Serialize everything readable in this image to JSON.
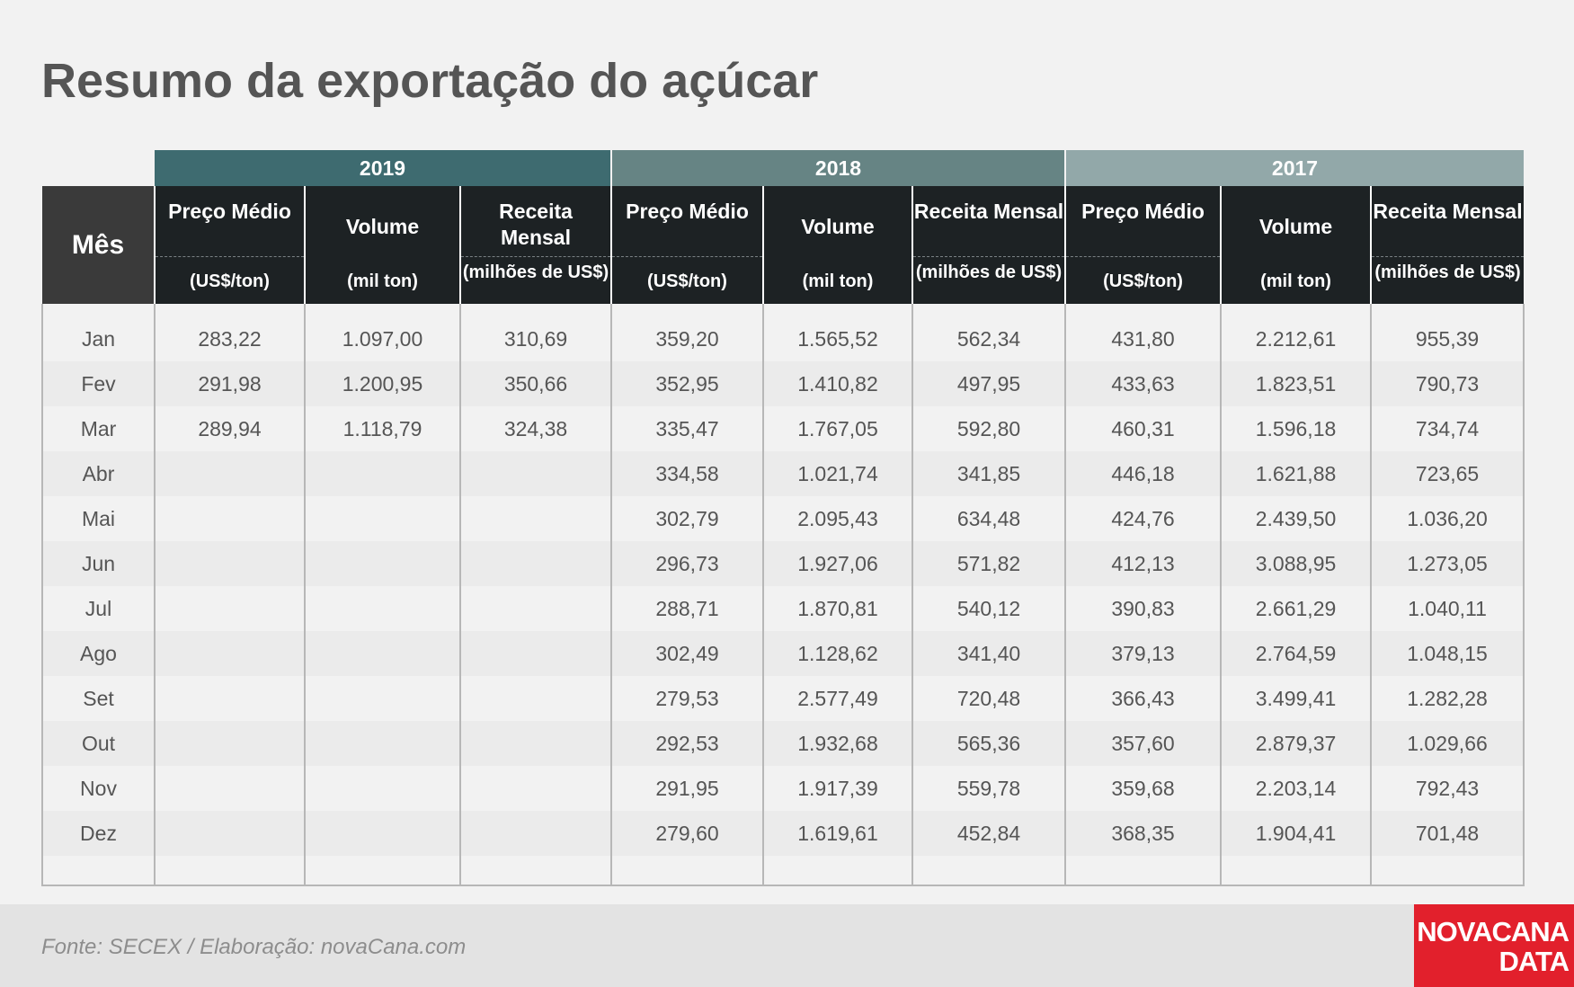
{
  "title": "Resumo da exportação do açúcar",
  "chart_data": {
    "type": "table",
    "title": "Resumo da exportação do açúcar",
    "row_header": "Mês",
    "years": [
      "2019",
      "2018",
      "2017"
    ],
    "columns": [
      {
        "name": "Preço Médio",
        "unit": "(US$/ton)"
      },
      {
        "name": "Volume",
        "unit": "(mil ton)"
      },
      {
        "name": "Receita Mensal",
        "unit": "(milhões de US$)"
      }
    ],
    "rows": [
      {
        "month": "Jan",
        "y2019": [
          "283,22",
          "1.097,00",
          "310,69"
        ],
        "y2018": [
          "359,20",
          "1.565,52",
          "562,34"
        ],
        "y2017": [
          "431,80",
          "2.212,61",
          "955,39"
        ]
      },
      {
        "month": "Fev",
        "y2019": [
          "291,98",
          "1.200,95",
          "350,66"
        ],
        "y2018": [
          "352,95",
          "1.410,82",
          "497,95"
        ],
        "y2017": [
          "433,63",
          "1.823,51",
          "790,73"
        ]
      },
      {
        "month": "Mar",
        "y2019": [
          "289,94",
          "1.118,79",
          "324,38"
        ],
        "y2018": [
          "335,47",
          "1.767,05",
          "592,80"
        ],
        "y2017": [
          "460,31",
          "1.596,18",
          "734,74"
        ]
      },
      {
        "month": "Abr",
        "y2019": [
          "",
          "",
          ""
        ],
        "y2018": [
          "334,58",
          "1.021,74",
          "341,85"
        ],
        "y2017": [
          "446,18",
          "1.621,88",
          "723,65"
        ]
      },
      {
        "month": "Mai",
        "y2019": [
          "",
          "",
          ""
        ],
        "y2018": [
          "302,79",
          "2.095,43",
          "634,48"
        ],
        "y2017": [
          "424,76",
          "2.439,50",
          "1.036,20"
        ]
      },
      {
        "month": "Jun",
        "y2019": [
          "",
          "",
          ""
        ],
        "y2018": [
          "296,73",
          "1.927,06",
          "571,82"
        ],
        "y2017": [
          "412,13",
          "3.088,95",
          "1.273,05"
        ]
      },
      {
        "month": "Jul",
        "y2019": [
          "",
          "",
          ""
        ],
        "y2018": [
          "288,71",
          "1.870,81",
          "540,12"
        ],
        "y2017": [
          "390,83",
          "2.661,29",
          "1.040,11"
        ]
      },
      {
        "month": "Ago",
        "y2019": [
          "",
          "",
          ""
        ],
        "y2018": [
          "302,49",
          "1.128,62",
          "341,40"
        ],
        "y2017": [
          "379,13",
          "2.764,59",
          "1.048,15"
        ]
      },
      {
        "month": "Set",
        "y2019": [
          "",
          "",
          ""
        ],
        "y2018": [
          "279,53",
          "2.577,49",
          "720,48"
        ],
        "y2017": [
          "366,43",
          "3.499,41",
          "1.282,28"
        ]
      },
      {
        "month": "Out",
        "y2019": [
          "",
          "",
          ""
        ],
        "y2018": [
          "292,53",
          "1.932,68",
          "565,36"
        ],
        "y2017": [
          "357,60",
          "2.879,37",
          "1.029,66"
        ]
      },
      {
        "month": "Nov",
        "y2019": [
          "",
          "",
          ""
        ],
        "y2018": [
          "291,95",
          "1.917,39",
          "559,78"
        ],
        "y2017": [
          "359,68",
          "2.203,14",
          "792,43"
        ]
      },
      {
        "month": "Dez",
        "y2019": [
          "",
          "",
          ""
        ],
        "y2018": [
          "279,60",
          "1.619,61",
          "452,84"
        ],
        "y2017": [
          "368,35",
          "1.904,41",
          "701,48"
        ]
      }
    ]
  },
  "footer": {
    "source": "Fonte: SECEX  / Elaboração: novaCana.com",
    "brand_line1": "NOVACANA",
    "brand_line2": "DATA"
  },
  "colors": {
    "year_2019": "#3e6b70",
    "year_2018": "#668484",
    "year_2017": "#92a8a9",
    "header_dark": "#1d2224",
    "brand_red": "#e2202c"
  }
}
